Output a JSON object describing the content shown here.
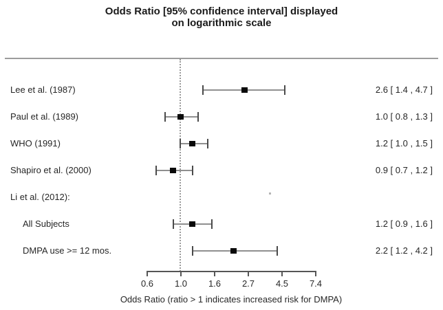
{
  "title": {
    "line1": "Odds Ratio [95% confidence interval] displayed",
    "line2": "on logarithmic scale"
  },
  "colors": {
    "marker": "#0a0a0a",
    "ci_line": "#8f8f8f",
    "ci_cap": "#4a4a4a",
    "axis": "#555555",
    "reference_line": "#9a9a9a",
    "separator": "#9c9c9c",
    "text": "#262626"
  },
  "chart_data": {
    "type": "scatter",
    "variant": "forest-plot",
    "title": "Odds Ratio [95% confidence interval] displayed on logarithmic scale",
    "xlabel": "Odds Ratio (ratio > 1 indicates increased risk for DMPA)",
    "x_scale": "log",
    "x_tick_labels": [
      "0.6",
      "1.0",
      "1.6",
      "2.7",
      "4.5",
      "7.4"
    ],
    "x_range": [
      0.6,
      7.4
    ],
    "reference_line_x": 1.0,
    "grid": false,
    "legend": null,
    "studies": [
      {
        "label": "Lee et al. (1987)",
        "indent": false,
        "or": 2.6,
        "ci_low": 1.4,
        "ci_high": 4.7,
        "display": "2.6 [ 1.4 , 4.7 ]"
      },
      {
        "label": "Paul et al. (1989)",
        "indent": false,
        "or": 1.0,
        "ci_low": 0.8,
        "ci_high": 1.3,
        "display": "1.0 [ 0.8 , 1.3 ]"
      },
      {
        "label": "WHO (1991)",
        "indent": false,
        "or": 1.2,
        "ci_low": 1.0,
        "ci_high": 1.5,
        "display": "1.2 [ 1.0 , 1.5 ]"
      },
      {
        "label": "Shapiro et al. (2000)",
        "indent": false,
        "or": 0.9,
        "ci_low": 0.7,
        "ci_high": 1.2,
        "display": "0.9 [ 0.7 , 1.2 ]"
      },
      {
        "label": "Li et al. (2012):",
        "indent": false,
        "or": null,
        "ci_low": null,
        "ci_high": null,
        "display": ""
      },
      {
        "label": "All Subjects",
        "indent": true,
        "or": 1.2,
        "ci_low": 0.9,
        "ci_high": 1.6,
        "display": "1.2 [ 0.9 , 1.6 ]"
      },
      {
        "label": "DMPA use >= 12 mos.",
        "indent": true,
        "or": 2.2,
        "ci_low": 1.2,
        "ci_high": 4.2,
        "display": "2.2 [ 1.2 , 4.2 ]"
      }
    ]
  }
}
